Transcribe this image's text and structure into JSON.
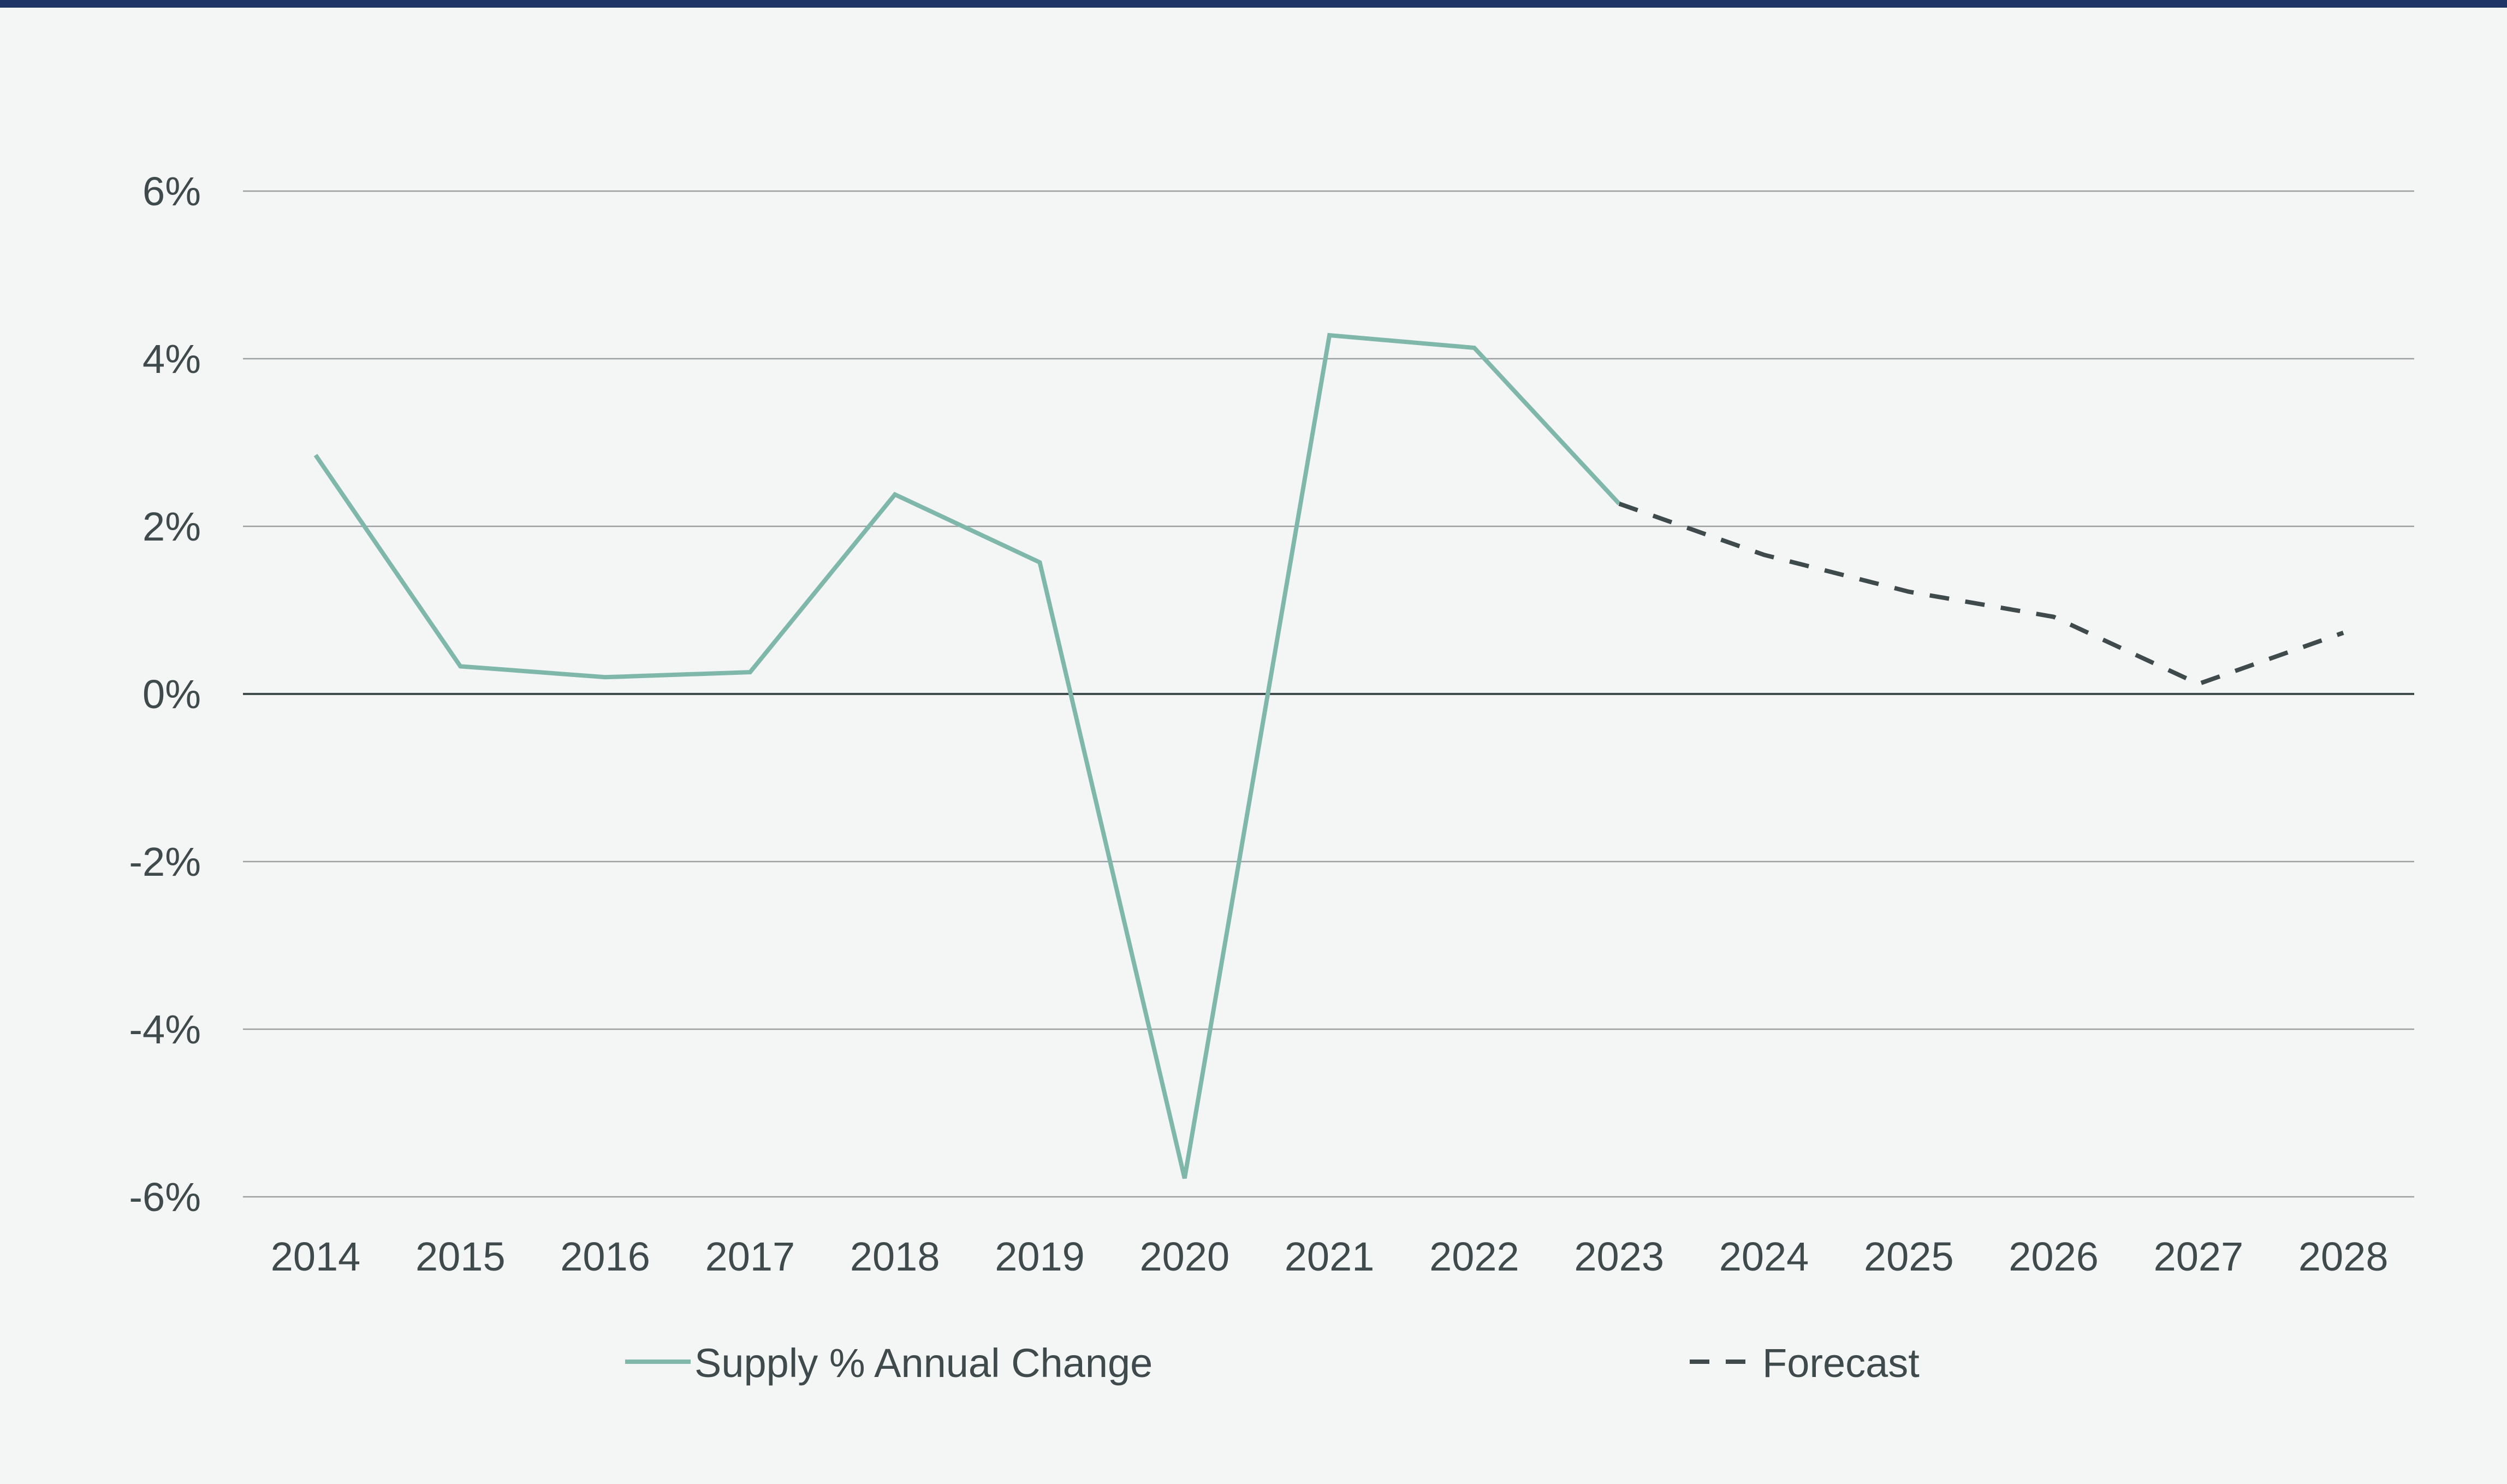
{
  "chart_data": {
    "type": "line",
    "title": "",
    "xlabel": "",
    "ylabel": "",
    "categories": [
      "2014",
      "2015",
      "2016",
      "2017",
      "2018",
      "2019",
      "2020",
      "2021",
      "2022",
      "2023",
      "2024",
      "2025",
      "2026",
      "2027",
      "2028"
    ],
    "ylim": [
      -6,
      6
    ],
    "yticks": [
      6,
      4,
      2,
      0,
      -2,
      -4,
      -6
    ],
    "ytick_labels": [
      "6%",
      "4%",
      "2%",
      "0%",
      "-2%",
      "-4%",
      "-6%"
    ],
    "grid": true,
    "legend_position": "bottom",
    "series": [
      {
        "name": "Supply % Annual Change",
        "style": "solid",
        "color": "#7fb8aa",
        "x": [
          "2014",
          "2015",
          "2016",
          "2017",
          "2018",
          "2019",
          "2020",
          "2021",
          "2022",
          "2023"
        ],
        "values": [
          2.85,
          0.33,
          0.2,
          0.26,
          2.38,
          1.57,
          -5.78,
          4.28,
          4.13,
          2.27
        ]
      },
      {
        "name": "Forecast",
        "style": "dashed",
        "color": "#3f4a4d",
        "x": [
          "2023",
          "2024",
          "2025",
          "2026",
          "2027",
          "2028"
        ],
        "values": [
          2.27,
          1.66,
          1.22,
          0.92,
          0.12,
          0.73
        ]
      }
    ]
  },
  "colors": {
    "top_bar": "#1f3566",
    "background": "#f4f6f5",
    "grid": "#9aa0a2",
    "zero_line": "#3f4a4d",
    "text": "#3f4a4d"
  }
}
